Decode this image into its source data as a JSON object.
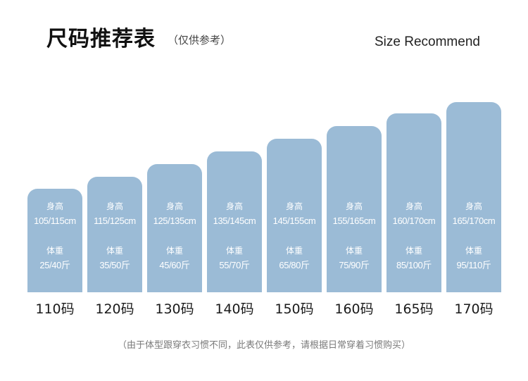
{
  "header": {
    "title": "尺码推荐表",
    "note": "（仅供参考）",
    "en_title": "Size Recommend"
  },
  "labels": {
    "height": "身高",
    "weight": "体重"
  },
  "colors": {
    "bar": "#9bbbd6"
  },
  "sizes": [
    {
      "name": "110码",
      "height": "105/115cm",
      "weight": "25/40斤"
    },
    {
      "name": "120码",
      "height": "115/125cm",
      "weight": "35/50斤"
    },
    {
      "name": "130码",
      "height": "125/135cm",
      "weight": "45/60斤"
    },
    {
      "name": "140码",
      "height": "135/145cm",
      "weight": "55/70斤"
    },
    {
      "name": "150码",
      "height": "145/155cm",
      "weight": "65/80斤"
    },
    {
      "name": "160码",
      "height": "155/165cm",
      "weight": "75/90斤"
    },
    {
      "name": "165码",
      "height": "160/170cm",
      "weight": "85/100斤"
    },
    {
      "name": "170码",
      "height": "165/170cm",
      "weight": "95/110斤"
    }
  ],
  "footer": "（由于体型跟穿衣习惯不同，此表仅供参考，请根据日常穿着习惯购买）"
}
